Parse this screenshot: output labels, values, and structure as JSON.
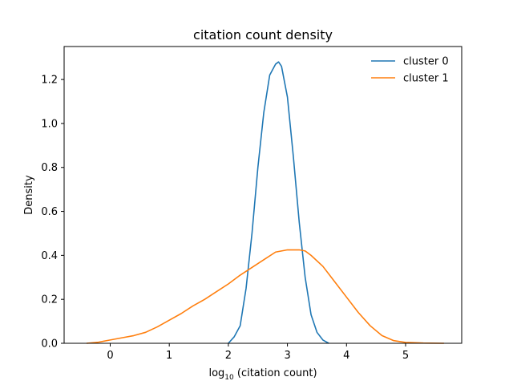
{
  "chart_data": {
    "type": "line",
    "title": "citation count density",
    "xlabel": {
      "prefix": "log",
      "subscript": "10",
      "suffix": " (citation count)"
    },
    "ylabel": "Density",
    "xlim": [
      -0.78,
      5.95
    ],
    "ylim": [
      0,
      1.35
    ],
    "xticks": [
      0,
      1,
      2,
      3,
      4,
      5
    ],
    "yticks": [
      0.0,
      0.2,
      0.4,
      0.6,
      0.8,
      1.0,
      1.2
    ],
    "xtick_labels": [
      "0",
      "1",
      "2",
      "3",
      "4",
      "5"
    ],
    "ytick_labels": [
      "0.0",
      "0.2",
      "0.4",
      "0.6",
      "0.8",
      "1.0",
      "1.2"
    ],
    "grid": false,
    "legend_position": "top-right",
    "series": [
      {
        "name": "cluster 0",
        "color": "#1f77b4",
        "x": [
          2.0,
          2.1,
          2.2,
          2.3,
          2.4,
          2.5,
          2.6,
          2.7,
          2.8,
          2.85,
          2.9,
          3.0,
          3.1,
          3.2,
          3.3,
          3.4,
          3.5,
          3.6,
          3.7
        ],
        "y": [
          0.0,
          0.03,
          0.08,
          0.25,
          0.5,
          0.8,
          1.05,
          1.22,
          1.27,
          1.28,
          1.26,
          1.12,
          0.85,
          0.55,
          0.3,
          0.13,
          0.05,
          0.015,
          0.0
        ]
      },
      {
        "name": "cluster 1",
        "color": "#ff7f0e",
        "x": [
          -0.4,
          -0.2,
          0.0,
          0.2,
          0.4,
          0.6,
          0.8,
          1.0,
          1.2,
          1.4,
          1.6,
          1.8,
          2.0,
          2.2,
          2.4,
          2.6,
          2.8,
          3.0,
          3.2,
          3.3,
          3.4,
          3.6,
          3.8,
          4.0,
          4.2,
          4.4,
          4.6,
          4.8,
          5.0,
          5.3,
          5.65
        ],
        "y": [
          0.0,
          0.005,
          0.015,
          0.025,
          0.035,
          0.05,
          0.075,
          0.105,
          0.135,
          0.17,
          0.2,
          0.235,
          0.27,
          0.31,
          0.345,
          0.38,
          0.415,
          0.425,
          0.425,
          0.42,
          0.4,
          0.35,
          0.28,
          0.21,
          0.14,
          0.08,
          0.035,
          0.012,
          0.004,
          0.001,
          0.0
        ]
      }
    ]
  }
}
